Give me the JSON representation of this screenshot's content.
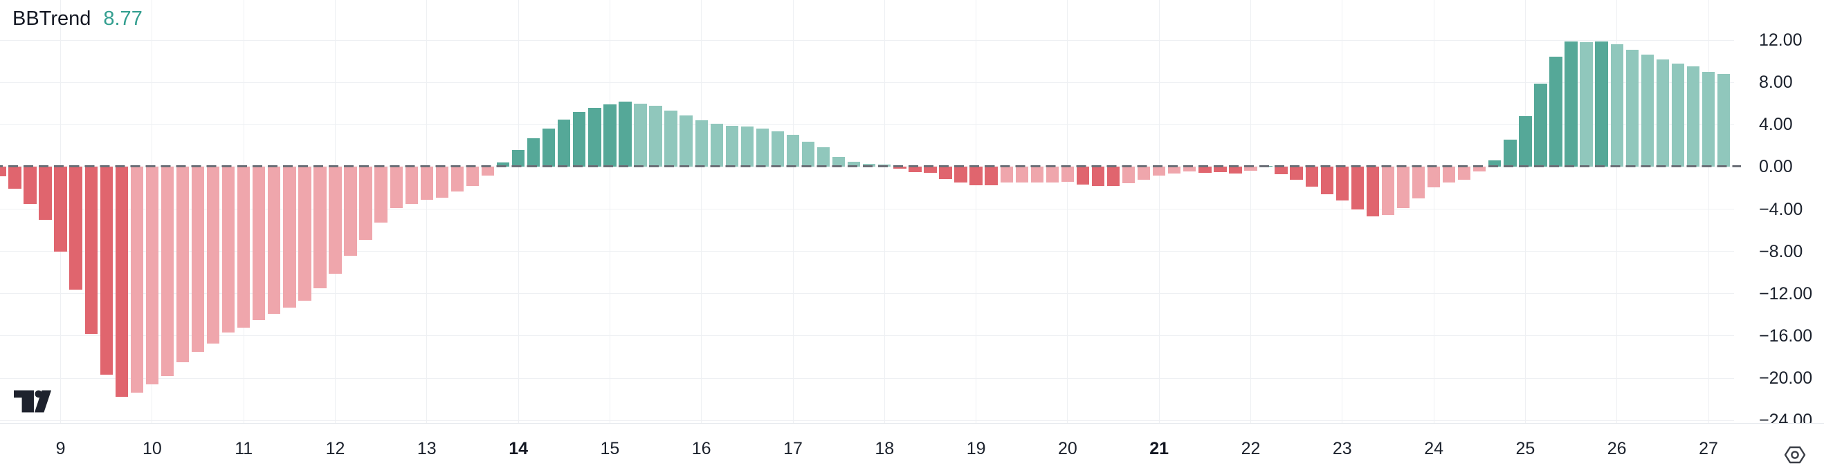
{
  "panel": {
    "indicator": {
      "name": "BBTrend",
      "value": "8.77",
      "value_color": "#329e8f"
    }
  },
  "price_axis": {
    "labels": [
      "12.00",
      "8.00",
      "4.00",
      "0.00",
      "−4.00",
      "−8.00",
      "−12.00",
      "−16.00",
      "−20.00",
      "−24.00"
    ]
  },
  "time_axis": {
    "labels": [
      {
        "text": "9",
        "bold": false
      },
      {
        "text": "10",
        "bold": false
      },
      {
        "text": "11",
        "bold": false
      },
      {
        "text": "12",
        "bold": false
      },
      {
        "text": "13",
        "bold": false
      },
      {
        "text": "14",
        "bold": true
      },
      {
        "text": "15",
        "bold": false
      },
      {
        "text": "16",
        "bold": false
      },
      {
        "text": "17",
        "bold": false
      },
      {
        "text": "18",
        "bold": false
      },
      {
        "text": "19",
        "bold": false
      },
      {
        "text": "20",
        "bold": false
      },
      {
        "text": "21",
        "bold": true
      },
      {
        "text": "22",
        "bold": false
      },
      {
        "text": "23",
        "bold": false
      },
      {
        "text": "24",
        "bold": false
      },
      {
        "text": "25",
        "bold": false
      },
      {
        "text": "26",
        "bold": false
      },
      {
        "text": "27",
        "bold": false
      }
    ]
  },
  "icons": {
    "logo": "tradingview-logo",
    "scale_settings": "hexagon-settings-icon"
  },
  "chart_data": {
    "type": "bar",
    "title": "BBTrend",
    "current_value": 8.77,
    "legend_position": "top-left",
    "grid": true,
    "zero_line_style": "dashed",
    "ylim": [
      -24.3,
      15.8
    ],
    "yticks": [
      12,
      8,
      4,
      0,
      -4,
      -8,
      -12,
      -16,
      -20,
      -24
    ],
    "ytick_labels": [
      "12.00",
      "8.00",
      "4.00",
      "0.00",
      "−4.00",
      "−8.00",
      "−12.00",
      "−16.00",
      "−20.00",
      "−24.00"
    ],
    "x_day_labels": [
      "9",
      "10",
      "11",
      "12",
      "13",
      "14",
      "15",
      "16",
      "17",
      "18",
      "19",
      "20",
      "21",
      "22",
      "23",
      "24",
      "25",
      "26",
      "27"
    ],
    "bold_day_labels": [
      "14",
      "21"
    ],
    "bars_per_day": 6,
    "first_day_label_bar_index": 4,
    "colors": {
      "dr": "#e0656e",
      "lr": "#efa6ac",
      "dg": "#55a898",
      "lg": "#90c7bc",
      "zero_line": "#6b6f77",
      "grid": "#eef0f3"
    },
    "shade_legend": {
      "dr": "falling-negative",
      "lr": "rising-negative",
      "dg": "rising-positive",
      "lg": "falling-positive"
    },
    "bars": [
      [
        -0.9,
        "dr"
      ],
      [
        -2.1,
        "dr"
      ],
      [
        -3.5,
        "dr"
      ],
      [
        -5.0,
        "dr"
      ],
      [
        -8.0,
        "dr"
      ],
      [
        -11.6,
        "dr"
      ],
      [
        -15.8,
        "dr"
      ],
      [
        -19.7,
        "dr"
      ],
      [
        -21.8,
        "dr"
      ],
      [
        -21.4,
        "lr"
      ],
      [
        -20.6,
        "lr"
      ],
      [
        -19.8,
        "lr"
      ],
      [
        -18.5,
        "lr"
      ],
      [
        -17.5,
        "lr"
      ],
      [
        -16.7,
        "lr"
      ],
      [
        -15.7,
        "lr"
      ],
      [
        -15.2,
        "lr"
      ],
      [
        -14.5,
        "lr"
      ],
      [
        -13.9,
        "lr"
      ],
      [
        -13.3,
        "lr"
      ],
      [
        -12.7,
        "lr"
      ],
      [
        -11.5,
        "lr"
      ],
      [
        -10.1,
        "lr"
      ],
      [
        -8.4,
        "lr"
      ],
      [
        -6.9,
        "lr"
      ],
      [
        -5.3,
        "lr"
      ],
      [
        -3.9,
        "lr"
      ],
      [
        -3.5,
        "lr"
      ],
      [
        -3.1,
        "lr"
      ],
      [
        -2.9,
        "lr"
      ],
      [
        -2.3,
        "lr"
      ],
      [
        -1.8,
        "lr"
      ],
      [
        -0.8,
        "lr"
      ],
      [
        0.45,
        "dg"
      ],
      [
        1.6,
        "dg"
      ],
      [
        2.7,
        "dg"
      ],
      [
        3.6,
        "dg"
      ],
      [
        4.5,
        "dg"
      ],
      [
        5.2,
        "dg"
      ],
      [
        5.6,
        "dg"
      ],
      [
        5.9,
        "dg"
      ],
      [
        6.2,
        "dg"
      ],
      [
        6.0,
        "lg"
      ],
      [
        5.8,
        "lg"
      ],
      [
        5.3,
        "lg"
      ],
      [
        4.9,
        "lg"
      ],
      [
        4.4,
        "lg"
      ],
      [
        4.1,
        "lg"
      ],
      [
        3.9,
        "lg"
      ],
      [
        3.85,
        "lg"
      ],
      [
        3.65,
        "lg"
      ],
      [
        3.35,
        "lg"
      ],
      [
        3.05,
        "lg"
      ],
      [
        2.4,
        "lg"
      ],
      [
        1.85,
        "lg"
      ],
      [
        0.95,
        "lg"
      ],
      [
        0.5,
        "lg"
      ],
      [
        0.3,
        "lg"
      ],
      [
        0.25,
        "lg"
      ],
      [
        -0.15,
        "dr"
      ],
      [
        -0.5,
        "dr"
      ],
      [
        -0.55,
        "dr"
      ],
      [
        -1.15,
        "dr"
      ],
      [
        -1.5,
        "dr"
      ],
      [
        -1.75,
        "dr"
      ],
      [
        -1.75,
        "dr"
      ],
      [
        -1.5,
        "lr"
      ],
      [
        -1.5,
        "lr"
      ],
      [
        -1.45,
        "lr"
      ],
      [
        -1.45,
        "lr"
      ],
      [
        -1.4,
        "lr"
      ],
      [
        -1.7,
        "dr"
      ],
      [
        -1.8,
        "dr"
      ],
      [
        -1.8,
        "dr"
      ],
      [
        -1.55,
        "lr"
      ],
      [
        -1.2,
        "lr"
      ],
      [
        -0.8,
        "lr"
      ],
      [
        -0.6,
        "lr"
      ],
      [
        -0.45,
        "lr"
      ],
      [
        -0.55,
        "dr"
      ],
      [
        -0.5,
        "dr"
      ],
      [
        -0.6,
        "dr"
      ],
      [
        -0.35,
        "lr"
      ],
      [
        0.1,
        "dg"
      ],
      [
        -0.7,
        "dr"
      ],
      [
        -1.25,
        "dr"
      ],
      [
        -1.9,
        "dr"
      ],
      [
        -2.6,
        "dr"
      ],
      [
        -3.2,
        "dr"
      ],
      [
        -4.05,
        "dr"
      ],
      [
        -4.7,
        "dr"
      ],
      [
        -4.55,
        "lr"
      ],
      [
        -3.9,
        "lr"
      ],
      [
        -3.0,
        "lr"
      ],
      [
        -1.95,
        "lr"
      ],
      [
        -1.5,
        "lr"
      ],
      [
        -1.2,
        "lr"
      ],
      [
        -0.4,
        "lr"
      ],
      [
        0.6,
        "dg"
      ],
      [
        2.6,
        "dg"
      ],
      [
        4.8,
        "dg"
      ],
      [
        7.9,
        "dg"
      ],
      [
        10.4,
        "dg"
      ],
      [
        11.85,
        "dg"
      ],
      [
        11.8,
        "lg"
      ],
      [
        11.9,
        "dg"
      ],
      [
        11.6,
        "lg"
      ],
      [
        11.1,
        "lg"
      ],
      [
        10.6,
        "lg"
      ],
      [
        10.2,
        "lg"
      ],
      [
        9.8,
        "lg"
      ],
      [
        9.5,
        "lg"
      ],
      [
        9.0,
        "lg"
      ],
      [
        8.77,
        "lg"
      ]
    ]
  }
}
